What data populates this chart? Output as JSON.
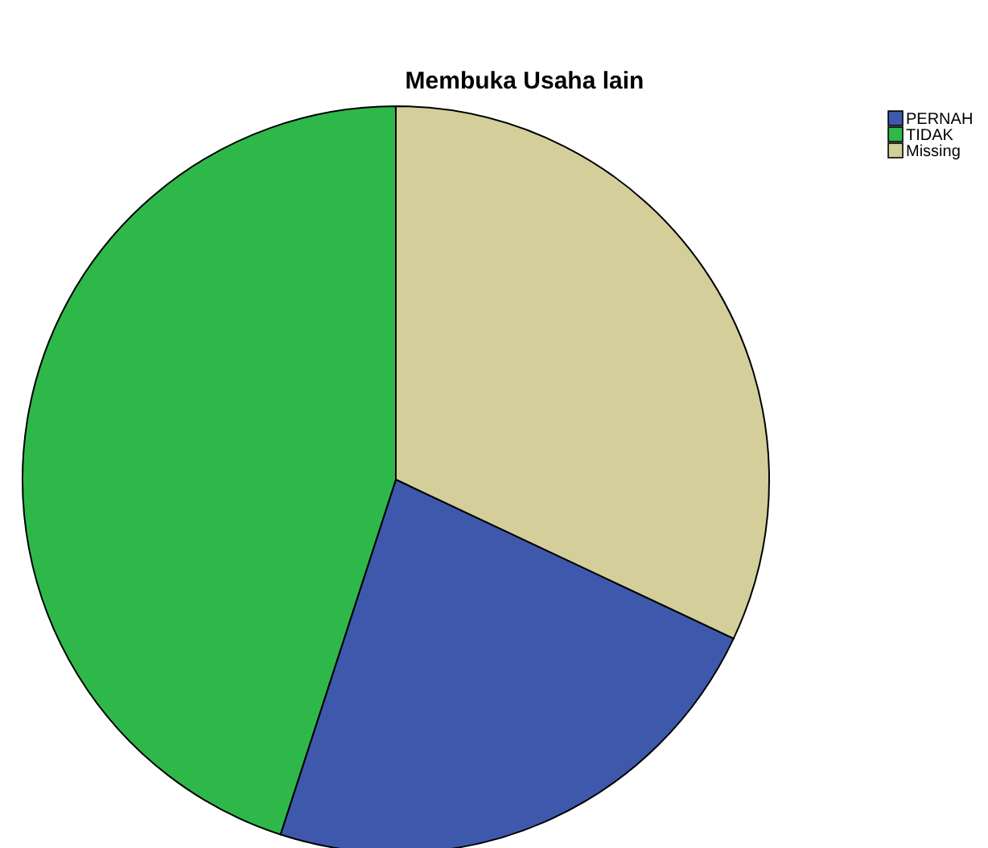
{
  "chart_data": {
    "type": "pie",
    "title": "Membuka Usaha lain",
    "categories": [
      "PERNAH",
      "TIDAK",
      "Missing"
    ],
    "values": [
      23,
      45,
      32
    ],
    "colors": [
      "#3e58ac",
      "#2fb84a",
      "#d4cf9a"
    ],
    "legend": "top right"
  }
}
